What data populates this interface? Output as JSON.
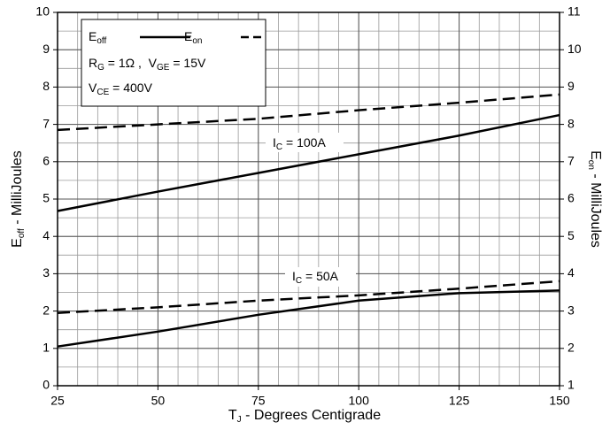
{
  "chart_data": {
    "type": "line",
    "x": [
      25,
      50,
      75,
      100,
      125,
      150
    ],
    "series": [
      {
        "values": [
          4.68,
          5.2,
          5.7,
          6.2,
          6.7,
          7.25
        ],
        "color": "#000000",
        "style": "solid",
        "axis": "y"
      },
      {
        "values": [
          7.85,
          8.0,
          8.15,
          8.38,
          8.58,
          8.8
        ],
        "color": "#000000",
        "style": "dashed",
        "axis": "y2"
      },
      {
        "values": [
          1.05,
          1.45,
          1.9,
          2.28,
          2.48,
          2.55
        ],
        "color": "#000000",
        "style": "solid",
        "axis": "y"
      },
      {
        "values": [
          2.95,
          3.1,
          3.28,
          3.42,
          3.6,
          3.8
        ],
        "color": "#000000",
        "style": "dashed",
        "axis": "y2"
      }
    ],
    "xlim": [
      25,
      150
    ],
    "xticks": [
      25,
      50,
      75,
      100,
      125,
      150
    ],
    "ylim": [
      0,
      10
    ],
    "yticks": [
      0,
      1,
      2,
      3,
      4,
      5,
      6,
      7,
      8,
      9,
      10
    ],
    "y2lim": [
      1,
      11
    ],
    "y2ticks": [
      1,
      2,
      3,
      4,
      5,
      6,
      7,
      8,
      9,
      10,
      11
    ],
    "grid": true,
    "minor_grid": {
      "x": 5,
      "y": 0.5
    },
    "xlabel": [
      {
        "t": "T"
      },
      {
        "t": "J",
        "sub": true
      },
      {
        "t": " - Degrees Centigrade"
      }
    ],
    "ylabel": [
      {
        "t": "E"
      },
      {
        "t": "off",
        "sub": true
      },
      {
        "t": " - MilliJoules"
      }
    ],
    "y2label": [
      {
        "t": "E"
      },
      {
        "t": "on",
        "sub": true
      },
      {
        "t": " - MilliJoules"
      }
    ],
    "legend": {
      "entries": [
        {
          "parts": [
            {
              "t": "E"
            },
            {
              "t": "off",
              "sub": true
            }
          ],
          "style": "solid"
        },
        {
          "parts": [
            {
              "t": "E"
            },
            {
              "t": "on",
              "sub": true
            }
          ],
          "style": "dashed"
        }
      ],
      "lines": [
        [
          {
            "t": "R"
          },
          {
            "t": "G",
            "sub": true
          },
          {
            "t": " = 1Ω ,  V"
          },
          {
            "t": "GE",
            "sub": true
          },
          {
            "t": " = 15V"
          }
        ],
        [
          {
            "t": "V"
          },
          {
            "t": "CE",
            "sub": true
          },
          {
            "t": " = 400V"
          }
        ]
      ]
    },
    "annotations": [
      [
        {
          "t": "I"
        },
        {
          "t": "C",
          "sub": true
        },
        {
          "t": " = 100A"
        }
      ],
      [
        {
          "t": "I"
        },
        {
          "t": "C",
          "sub": true
        },
        {
          "t": " = 50A"
        }
      ]
    ]
  }
}
